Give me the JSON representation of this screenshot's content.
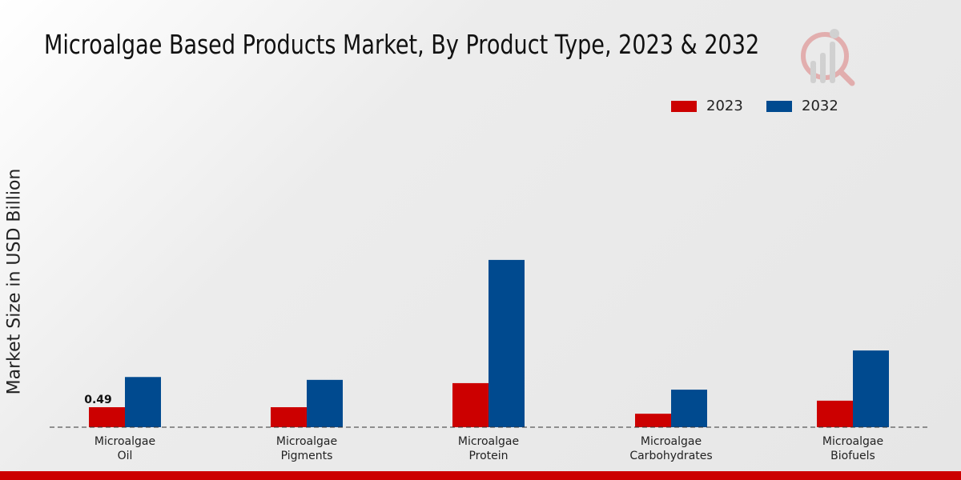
{
  "chart_data": {
    "type": "bar",
    "title": "Microalgae Based Products Market, By Product Type, 2023 & 2032",
    "xlabel": "",
    "ylabel": "Market Size in USD Billion",
    "categories": [
      [
        "Microalgae",
        "Oil"
      ],
      [
        "Microalgae",
        "Pigments"
      ],
      [
        "Microalgae",
        "Protein"
      ],
      [
        "Microalgae",
        "Carbohydrates"
      ],
      [
        "Microalgae",
        "Biofuels"
      ]
    ],
    "series": [
      {
        "name": "2023",
        "color": "#cc0000",
        "values": [
          0.49,
          0.49,
          1.08,
          0.33,
          0.65
        ]
      },
      {
        "name": "2032",
        "color": "#004a8f",
        "values": [
          1.23,
          1.16,
          4.1,
          0.92,
          1.88
        ]
      }
    ],
    "data_labels": [
      {
        "series": "2023",
        "category": 0,
        "text": "0.49"
      }
    ],
    "ylim": [
      0,
      5
    ],
    "grid": false,
    "legend_position": "top-right"
  }
}
